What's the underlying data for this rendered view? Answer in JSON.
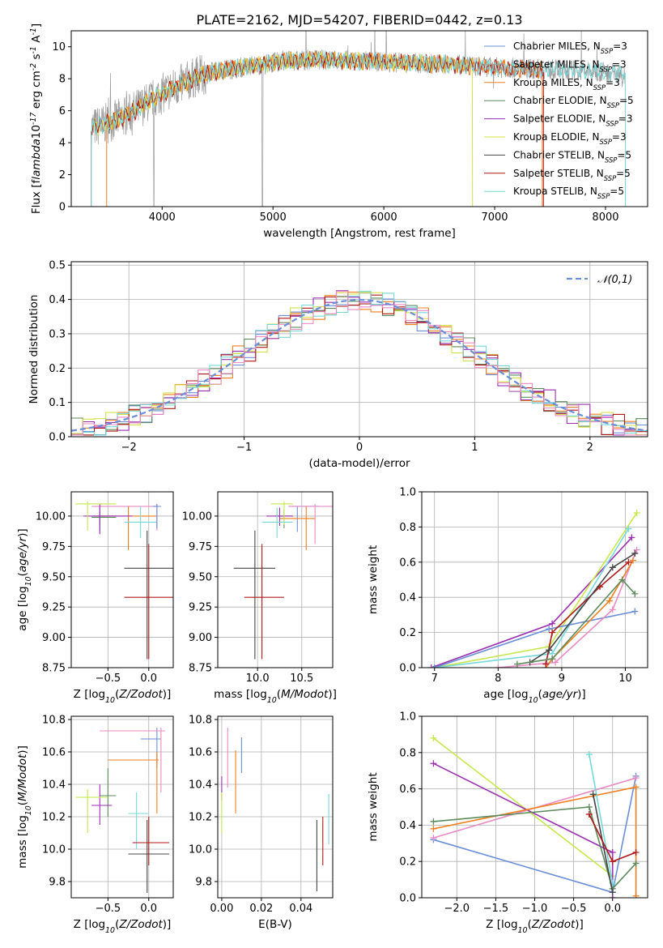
{
  "colors": {
    "s1": "#6a8fd8",
    "s2": "#9b9b9b",
    "s3": "#ef7f1e",
    "s4": "#5c8a5c",
    "s5": "#9a2fb0",
    "s6": "#d6e04a",
    "s7": "#444444",
    "s8": "#b01818",
    "s9": "#75d8d8",
    "s10": "#e98ac4",
    "s11": "#c6e84d"
  },
  "chart_data": [
    {
      "id": "spectrum",
      "type": "line",
      "title": "PLATE=2162, MJD=54207, FIBERID=0442, z=0.13",
      "xlabel": "wavelength [Angstrom, rest frame]",
      "ylabel": "Flux [f$_\\lambda$10$^{-17}$ erg cm$^{-2}$ s$^{-1}$ A$^{-1}$]",
      "xlim": [
        3180,
        8380
      ],
      "ylim": [
        0,
        11
      ],
      "xticks": [
        4000,
        5000,
        6000,
        7000,
        8000
      ],
      "yticks": [
        0,
        2,
        4,
        6,
        8,
        10
      ],
      "legend_position": "upper right",
      "legend": [
        {
          "label": "Chabrier MILES, N$_{SSP}$=3",
          "color": "s1"
        },
        {
          "label": "Salpeter MILES, N$_{SSP}$=3",
          "color": "s2"
        },
        {
          "label": "Kroupa MILES, N$_{SSP}$=3",
          "color": "s3"
        },
        {
          "label": "Chabrier ELODIE, N$_{SSP}$=5",
          "color": "s4"
        },
        {
          "label": "Salpeter ELODIE, N$_{SSP}$=3",
          "color": "s5"
        },
        {
          "label": "Kroupa ELODIE, N$_{SSP}$=3",
          "color": "s6"
        },
        {
          "label": "Chabrier STELIB, N$_{SSP}$=5",
          "color": "s7"
        },
        {
          "label": "Salpeter STELIB, N$_{SSP}$=5",
          "color": "s8"
        },
        {
          "label": "Kroupa STELIB, N$_{SSP}$=5",
          "color": "s9"
        }
      ],
      "continuum": {
        "x": [
          3360,
          3500,
          3650,
          3800,
          3950,
          4100,
          4300,
          4500,
          4800,
          5100,
          5400,
          5800,
          6200,
          6600,
          7000,
          7400,
          7800,
          8200
        ],
        "y": [
          4.9,
          5.2,
          5.6,
          6.2,
          6.9,
          7.4,
          8.1,
          8.5,
          8.8,
          9.1,
          9.2,
          9.1,
          9.0,
          8.9,
          8.7,
          8.6,
          8.5,
          8.3
        ]
      },
      "model_curves": [
        {
          "color": "s3",
          "ends": [
            3500,
            7430
          ]
        },
        {
          "color": "s6",
          "ends": [
            3360,
            6800
          ]
        },
        {
          "color": "s8",
          "ends": [
            3360,
            7440
          ]
        },
        {
          "color": "s9",
          "ends": [
            3360,
            8180
          ]
        }
      ],
      "data_gaps": [
        3925,
        4905
      ]
    },
    {
      "id": "residuals",
      "type": "step",
      "xlabel": "(data-model)/error",
      "ylabel": "Normed distribution",
      "xlim": [
        -2.5,
        2.5
      ],
      "ylim": [
        0,
        0.51
      ],
      "xticks": [
        -2,
        -1,
        0,
        1,
        2
      ],
      "yticks": [
        0.0,
        0.1,
        0.2,
        0.3,
        0.4,
        0.5
      ],
      "grid": true,
      "legend_position": "upper right",
      "legend": [
        {
          "label": "$\\mathcal{N}(0,1)$",
          "color": "s1",
          "style": "dashed"
        }
      ],
      "bin_width": 0.1,
      "series_colors": [
        "s1",
        "s3",
        "s4",
        "s5",
        "s6",
        "s8",
        "s9",
        "s10"
      ],
      "normal_reference": {
        "mean": 0,
        "sigma": 1
      }
    },
    {
      "id": "age-vs-metallicity",
      "type": "errorbar",
      "xlabel": "Z [log$_{10}$($Z/Z_\\odot$)]",
      "ylabel": "age  [log$_{10}$($age/yr$)]",
      "xlim": [
        -0.95,
        0.3
      ],
      "ylim": [
        8.75,
        10.2
      ],
      "xticks": [
        -0.5,
        0.0
      ],
      "yticks": [
        8.75,
        9.0,
        9.25,
        9.5,
        9.75,
        10.0
      ],
      "grid": true,
      "points": [
        {
          "x": -0.6,
          "y": 10.0,
          "xe": [
            -0.7,
            -0.4
          ],
          "ye": [
            9.87,
            10.08
          ],
          "color": "s1"
        },
        {
          "x": 0.1,
          "y": 10.08,
          "xe": [
            -0.7,
            0.1
          ],
          "ye": [
            9.88,
            10.1
          ],
          "color": "s10"
        },
        {
          "x": -0.25,
          "y": 10.0,
          "xe": [
            -0.6,
            0.1
          ],
          "ye": [
            9.72,
            10.08
          ],
          "color": "s3"
        },
        {
          "x": -0.6,
          "y": 9.99,
          "xe": [
            -0.7,
            -0.4
          ],
          "ye": [
            9.92,
            10.03
          ],
          "color": "s4"
        },
        {
          "x": -0.6,
          "y": 10.0,
          "xe": [
            -0.8,
            -0.2
          ],
          "ye": [
            9.85,
            10.1
          ],
          "color": "s5"
        },
        {
          "x": -0.75,
          "y": 10.1,
          "xe": [
            -0.9,
            -0.4
          ],
          "ye": [
            9.88,
            10.12
          ],
          "color": "s11"
        },
        {
          "x": -0.1,
          "y": 9.95,
          "xe": [
            -0.3,
            0.1
          ],
          "ye": [
            9.82,
            10.08
          ],
          "color": "s9"
        },
        {
          "x": 0.1,
          "y": 10.08,
          "xe": [
            0.05,
            0.15
          ],
          "ye": [
            9.9,
            10.1
          ],
          "color": "s1"
        },
        {
          "x": -0.02,
          "y": 9.57,
          "xe": [
            -0.3,
            0.3
          ],
          "ye": [
            8.82,
            9.88
          ],
          "color": "s7"
        },
        {
          "x": 0.0,
          "y": 9.33,
          "xe": [
            -0.3,
            0.3
          ],
          "ye": [
            8.82,
            9.77
          ],
          "color": "s8"
        }
      ]
    },
    {
      "id": "age-vs-mass",
      "type": "errorbar",
      "xlabel": "mass [log$_{10}$($M/M_\\odot$)]",
      "xlim": [
        9.55,
        10.85
      ],
      "ylim": [
        8.75,
        10.2
      ],
      "xticks": [
        10.0,
        10.5
      ],
      "yticks": [
        8.75,
        9.0,
        9.25,
        9.5,
        9.75,
        10.0
      ],
      "grid": true,
      "points": [
        {
          "x": 10.45,
          "y": 10.08,
          "xe": [
            10.35,
            10.7
          ],
          "ye": [
            9.87,
            10.08
          ],
          "color": "s1"
        },
        {
          "x": 10.65,
          "y": 10.08,
          "xe": [
            10.35,
            10.85
          ],
          "ye": [
            9.77,
            10.1
          ],
          "color": "s10"
        },
        {
          "x": 10.55,
          "y": 9.98,
          "xe": [
            10.25,
            10.65
          ],
          "ye": [
            9.72,
            10.08
          ],
          "color": "s3"
        },
        {
          "x": 10.3,
          "y": 10.0,
          "xe": [
            10.2,
            10.4
          ],
          "ye": [
            9.9,
            10.05
          ],
          "color": "s4"
        },
        {
          "x": 10.25,
          "y": 10.0,
          "xe": [
            10.1,
            10.4
          ],
          "ye": [
            9.92,
            10.07
          ],
          "color": "s5"
        },
        {
          "x": 10.3,
          "y": 10.1,
          "xe": [
            10.15,
            10.4
          ],
          "ye": [
            9.93,
            10.12
          ],
          "color": "s11"
        },
        {
          "x": 10.22,
          "y": 9.95,
          "xe": [
            10.05,
            10.4
          ],
          "ye": [
            9.82,
            10.07
          ],
          "color": "s9"
        },
        {
          "x": 9.97,
          "y": 9.57,
          "xe": [
            9.73,
            10.2
          ],
          "ye": [
            8.82,
            9.88
          ],
          "color": "s7"
        },
        {
          "x": 10.05,
          "y": 9.33,
          "xe": [
            9.85,
            10.3
          ],
          "ye": [
            8.82,
            9.77
          ],
          "color": "s8"
        }
      ]
    },
    {
      "id": "weight-vs-age",
      "type": "line",
      "xlabel": "age  [log$_{10}$($age/yr$)]",
      "ylabel": "mass weight",
      "xlim": [
        6.8,
        10.35
      ],
      "ylim": [
        0,
        1.0
      ],
      "xticks": [
        7,
        8,
        9,
        10
      ],
      "yticks": [
        0.0,
        0.2,
        0.4,
        0.6,
        0.8,
        1.0
      ],
      "grid": true,
      "series": [
        {
          "color": "s5",
          "x": [
            6.95,
            8.85,
            10.1
          ],
          "y": [
            0.0,
            0.25,
            0.74
          ]
        },
        {
          "color": "s11",
          "x": [
            7.0,
            8.8,
            10.18
          ],
          "y": [
            0.0,
            0.12,
            0.88
          ]
        },
        {
          "color": "s9",
          "x": [
            7.0,
            8.85,
            10.05
          ],
          "y": [
            0.0,
            0.08,
            0.79
          ]
        },
        {
          "color": "s1",
          "x": [
            7.0,
            8.8,
            10.15
          ],
          "y": [
            0.0,
            0.22,
            0.32
          ]
        },
        {
          "color": "s10",
          "x": [
            8.0,
            8.9,
            9.8,
            10.18
          ],
          "y": [
            0.0,
            0.03,
            0.33,
            0.67
          ]
        },
        {
          "color": "s3",
          "x": [
            8.75,
            8.85,
            9.75,
            10.12
          ],
          "y": [
            0.0,
            0.05,
            0.38,
            0.61
          ]
        },
        {
          "color": "s8",
          "x": [
            8.75,
            8.85,
            9.6,
            10.05
          ],
          "y": [
            0.02,
            0.2,
            0.46,
            0.6
          ]
        },
        {
          "color": "s7",
          "x": [
            8.5,
            8.8,
            9.8,
            10.15
          ],
          "y": [
            0.03,
            0.1,
            0.57,
            0.65
          ]
        },
        {
          "color": "s4",
          "x": [
            8.3,
            8.85,
            9.95,
            10.15
          ],
          "y": [
            0.02,
            0.05,
            0.5,
            0.42
          ]
        }
      ]
    },
    {
      "id": "mass-vs-metallicity",
      "type": "errorbar",
      "xlabel": "Z [log$_{10}$($Z/Z_\\odot$)]",
      "ylabel": "mass [log$_{10}$($M/M_\\odot$)]",
      "xlim": [
        -0.95,
        0.3
      ],
      "ylim": [
        9.7,
        10.82
      ],
      "xticks": [
        -0.5,
        0.0
      ],
      "yticks": [
        9.8,
        10.0,
        10.2,
        10.4,
        10.6,
        10.8
      ],
      "grid": true,
      "points": [
        {
          "x": 0.1,
          "y": 10.68,
          "xe": [
            -0.1,
            0.15
          ],
          "ye": [
            10.5,
            10.75
          ],
          "color": "s1"
        },
        {
          "x": 0.15,
          "y": 10.73,
          "xe": [
            -0.6,
            0.2
          ],
          "ye": [
            10.35,
            10.75
          ],
          "color": "s10"
        },
        {
          "x": 0.1,
          "y": 10.55,
          "xe": [
            -0.5,
            0.12
          ],
          "ye": [
            10.22,
            10.6
          ],
          "color": "s3"
        },
        {
          "x": -0.5,
          "y": 10.33,
          "xe": [
            -0.6,
            -0.4
          ],
          "ye": [
            10.2,
            10.5
          ],
          "color": "s4"
        },
        {
          "x": -0.6,
          "y": 10.27,
          "xe": [
            -0.7,
            -0.45
          ],
          "ye": [
            10.15,
            10.4
          ],
          "color": "s5"
        },
        {
          "x": -0.75,
          "y": 10.32,
          "xe": [
            -0.9,
            -0.5
          ],
          "ye": [
            10.1,
            10.37
          ],
          "color": "s11"
        },
        {
          "x": -0.15,
          "y": 10.22,
          "xe": [
            -0.25,
            0.0
          ],
          "ye": [
            10.0,
            10.35
          ],
          "color": "s9"
        },
        {
          "x": -0.02,
          "y": 9.97,
          "xe": [
            -0.25,
            0.25
          ],
          "ye": [
            9.73,
            10.18
          ],
          "color": "s7"
        },
        {
          "x": 0.0,
          "y": 10.04,
          "xe": [
            -0.2,
            0.25
          ],
          "ye": [
            9.9,
            10.2
          ],
          "color": "s8"
        }
      ]
    },
    {
      "id": "mass-vs-extinction",
      "type": "errorbar",
      "xlabel": "E(B-V)",
      "xlim": [
        -0.002,
        0.056
      ],
      "ylim": [
        9.7,
        10.82
      ],
      "xticks": [
        0.0,
        0.02,
        0.04
      ],
      "yticks": [
        9.8,
        10.0,
        10.2,
        10.4,
        10.6,
        10.8
      ],
      "grid": true,
      "points": [
        {
          "x": 0.01,
          "y": 10.6,
          "ye": [
            10.47,
            10.69
          ],
          "color": "s1"
        },
        {
          "x": 0.003,
          "y": 10.5,
          "ye": [
            10.38,
            10.75
          ],
          "color": "s10"
        },
        {
          "x": 0.007,
          "y": 10.4,
          "ye": [
            10.22,
            10.61
          ],
          "color": "s3"
        },
        {
          "x": 0.0,
          "y": 10.38,
          "ye": [
            10.3,
            10.45
          ],
          "color": "s5"
        },
        {
          "x": 0.0,
          "y": 10.25,
          "ye": [
            10.1,
            10.35
          ],
          "color": "s11"
        },
        {
          "x": 0.054,
          "y": 10.2,
          "ye": [
            10.03,
            10.34
          ],
          "color": "s9"
        },
        {
          "x": 0.048,
          "y": 9.95,
          "ye": [
            9.74,
            10.18
          ],
          "color": "s7"
        },
        {
          "x": 0.051,
          "y": 10.05,
          "ye": [
            9.9,
            10.2
          ],
          "color": "s8"
        }
      ]
    },
    {
      "id": "weight-vs-metallicity",
      "type": "line",
      "xlabel": "Z [log$_{10}$($Z/Z_\\odot$)]",
      "ylabel": "mass weight",
      "xlim": [
        -2.45,
        0.45
      ],
      "ylim": [
        0,
        1.0
      ],
      "xticks": [
        -2.0,
        -1.5,
        -1.0,
        -0.5,
        0.0
      ],
      "yticks": [
        0.0,
        0.2,
        0.4,
        0.6,
        0.8,
        1.0
      ],
      "grid": true,
      "series": [
        {
          "color": "s11",
          "x": [
            -2.3,
            0.0,
            0.0
          ],
          "y": [
            0.88,
            0.12,
            0.0
          ]
        },
        {
          "color": "s5",
          "x": [
            -2.3,
            0.0,
            0.0
          ],
          "y": [
            0.74,
            0.25,
            0.0
          ]
        },
        {
          "color": "s1",
          "x": [
            -2.3,
            0.0,
            0.3
          ],
          "y": [
            0.32,
            0.03,
            0.67
          ]
        },
        {
          "color": "s10",
          "x": [
            -2.3,
            0.3
          ],
          "y": [
            0.33,
            0.66
          ]
        },
        {
          "color": "s3",
          "x": [
            -2.3,
            0.3,
            0.3
          ],
          "y": [
            0.38,
            0.61,
            0.01
          ]
        },
        {
          "color": "s4",
          "x": [
            -2.3,
            -0.3,
            0.0,
            0.3
          ],
          "y": [
            0.42,
            0.5,
            0.05,
            0.19
          ]
        },
        {
          "color": "s9",
          "x": [
            -0.3,
            0.0
          ],
          "y": [
            0.79,
            0.08
          ]
        },
        {
          "color": "s7",
          "x": [
            -0.25,
            0.0
          ],
          "y": [
            0.57,
            0.03
          ]
        },
        {
          "color": "s8",
          "x": [
            -0.3,
            0.0,
            0.3
          ],
          "y": [
            0.46,
            0.2,
            0.25
          ]
        }
      ]
    }
  ]
}
